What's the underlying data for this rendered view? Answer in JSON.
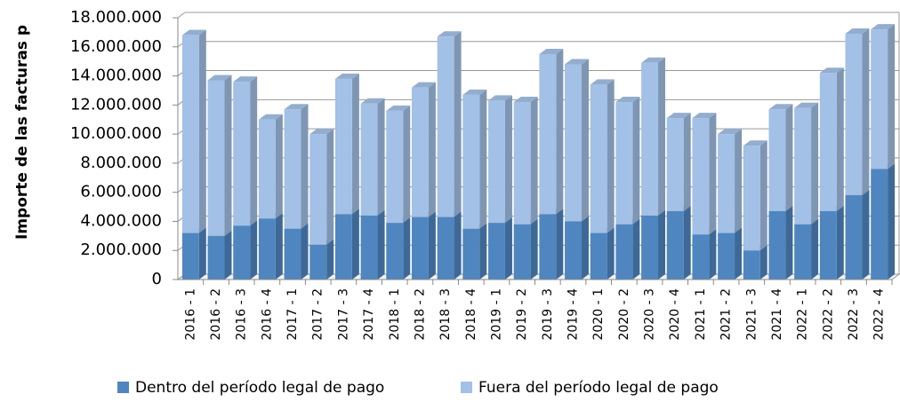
{
  "chart_data": {
    "type": "stacked-bar-3d",
    "y_label": "Importe de las facturas p",
    "categories": [
      "2016 - 1",
      "2016 - 2",
      "2016 - 3",
      "2016 - 4",
      "2017 - 1",
      "2017 - 2",
      "2017 - 3",
      "2017 - 4",
      "2018 - 1",
      "2018 - 2",
      "2018 - 3",
      "2018 - 4",
      "2019 - 1",
      "2019 - 2",
      "2019 - 3",
      "2019 - 4",
      "2020 - 1",
      "2020 - 2",
      "2020 - 3",
      "2020 - 4",
      "2021 - 1",
      "2021 - 2",
      "2021 - 3",
      "2021 - 4",
      "2022 - 1",
      "2022 - 2",
      "2022 - 3",
      "2022 - 4"
    ],
    "series": [
      {
        "name": "Dentro del período legal de pago",
        "color": "#4f86c0",
        "values": [
          3200000,
          3000000,
          3700000,
          4200000,
          3500000,
          2400000,
          4500000,
          4400000,
          3900000,
          4300000,
          4300000,
          3500000,
          3900000,
          3800000,
          4500000,
          4000000,
          3200000,
          3800000,
          4400000,
          4700000,
          3100000,
          3200000,
          2000000,
          4700000,
          3800000,
          4700000,
          5800000,
          7600000
        ]
      },
      {
        "name": "Fuera del período legal de pago",
        "color": "#a3c0e6",
        "values": [
          13600000,
          10700000,
          9900000,
          6800000,
          8200000,
          7600000,
          9300000,
          7700000,
          7700000,
          8900000,
          12400000,
          9200000,
          8400000,
          8400000,
          11000000,
          10800000,
          10200000,
          8400000,
          10500000,
          6400000,
          8000000,
          6800000,
          7200000,
          7000000,
          8000000,
          9500000,
          11100000,
          9600000
        ]
      }
    ],
    "ylim": [
      0,
      18000000
    ],
    "yticks": [
      0,
      {
        "value": 2000000,
        "label": "2.000.000"
      },
      {
        "value": 4000000,
        "label": "4.000.000"
      },
      {
        "value": 6000000,
        "label": "6.000.000"
      },
      {
        "value": 8000000,
        "label": "8.000.000"
      },
      {
        "value": 10000000,
        "label": "10.000.000"
      },
      {
        "value": 12000000,
        "label": "12.000.000"
      },
      {
        "value": 14000000,
        "label": "14.000.000"
      },
      {
        "value": 16000000,
        "label": "16.000.000"
      },
      {
        "value": 18000000,
        "label": "18.000.000"
      }
    ],
    "grid": true,
    "legend": "bottom"
  }
}
